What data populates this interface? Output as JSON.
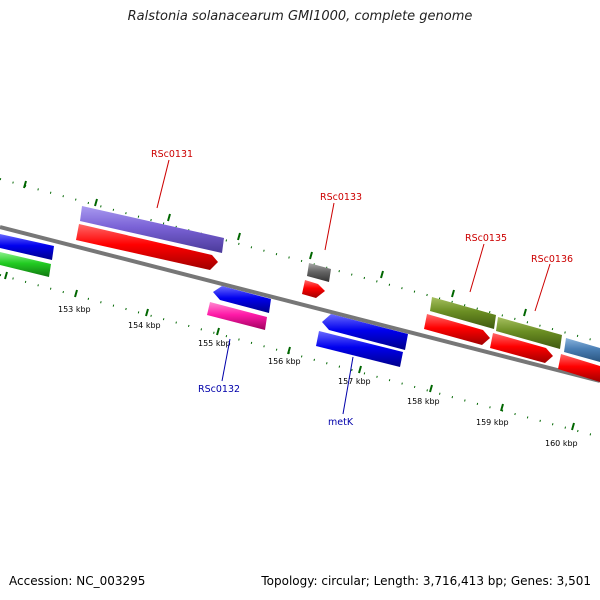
{
  "title": "Ralstonia solanacearum GMI1000, complete genome",
  "footer": {
    "accession": "Accession: NC_003295",
    "summary": "Topology: circular; Length: 3,716,413 bp; Genes: 3,501"
  },
  "ticks": [
    "153 kbp",
    "154 kbp",
    "155 kbp",
    "156 kbp",
    "157 kbp",
    "158 kbp",
    "159 kbp",
    "160 kbp"
  ],
  "gene_labels": {
    "rsc0131": "RSc0131",
    "rsc0133": "RSc0133",
    "rsc0135": "RSc0135",
    "rsc0136": "RSc0136",
    "rsc0132": "RSc0132",
    "metk": "metK"
  },
  "colors": {
    "forward_label": "#cc0000",
    "reverse_label": "#0000aa",
    "backbone": "#808080",
    "tick": "#006600",
    "cds": "#ff0000",
    "gene_blue": "#0000ee",
    "gene_purple": "#7a62d6",
    "gene_green": "#22cc22",
    "gene_magenta": "#ff1aa8",
    "gene_olive": "#6b8e23",
    "gene_gray": "#666666",
    "gene_steel": "#4a7fb5"
  }
}
